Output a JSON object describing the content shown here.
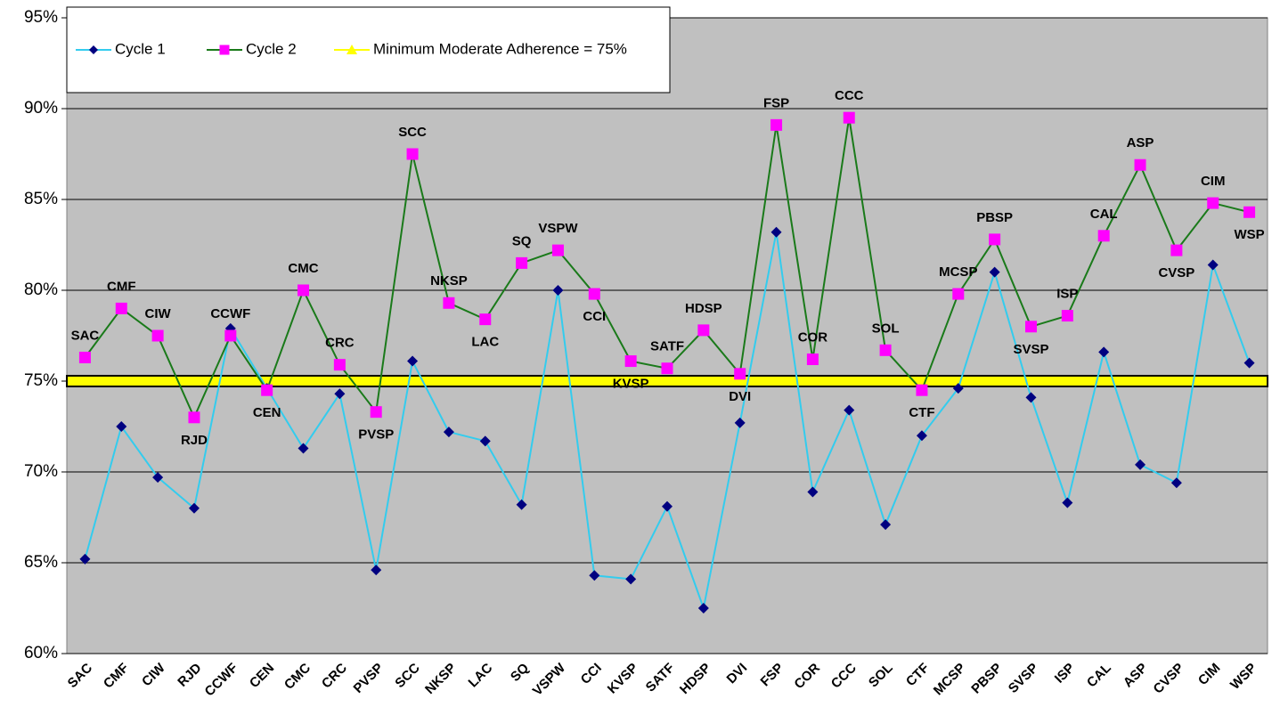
{
  "chart_data": {
    "type": "line",
    "categories": [
      "SAC",
      "CMF",
      "CIW",
      "RJD",
      "CCWF",
      "CEN",
      "CMC",
      "CRC",
      "PVSP",
      "SCC",
      "NKSP",
      "LAC",
      "SQ",
      "VSPW",
      "CCI",
      "KVSP",
      "SATF",
      "HDSP",
      "DVI",
      "FSP",
      "COR",
      "CCC",
      "SOL",
      "CTF",
      "MCSP",
      "PBSP",
      "SVSP",
      "ISP",
      "CAL",
      "ASP",
      "CVSP",
      "CIM",
      "WSP"
    ],
    "series": [
      {
        "name": "Cycle 1",
        "color": "#33ccee",
        "marker_color": "#000080",
        "marker": "diamond",
        "values": [
          65.2,
          72.5,
          69.7,
          68.0,
          77.9,
          74.6,
          71.3,
          74.3,
          64.6,
          76.1,
          72.2,
          71.7,
          68.2,
          80.0,
          64.3,
          64.1,
          68.1,
          62.5,
          72.7,
          83.2,
          68.9,
          73.4,
          67.1,
          72.0,
          74.6,
          81.0,
          74.1,
          68.3,
          76.6,
          70.4,
          69.4,
          81.4,
          76.0
        ]
      },
      {
        "name": "Cycle 2",
        "color": "#1a7a1a",
        "marker_color": "#ff00ff",
        "marker": "square",
        "values": [
          76.3,
          79.0,
          77.5,
          73.0,
          77.5,
          74.5,
          80.0,
          75.9,
          73.3,
          87.5,
          79.3,
          78.4,
          81.5,
          82.2,
          79.8,
          76.1,
          75.7,
          77.8,
          75.4,
          89.1,
          76.2,
          89.5,
          76.7,
          74.5,
          79.8,
          82.8,
          78.0,
          78.6,
          83.0,
          86.9,
          82.2,
          84.8,
          84.3
        ]
      }
    ],
    "reference_line": {
      "name": "Minimum Moderate Adherence = 75%",
      "value": 75,
      "color": "#ffff00"
    },
    "ylim": [
      60,
      95
    ],
    "yticks": [
      {
        "value": 60,
        "label": "60%"
      },
      {
        "value": 65,
        "label": "65%"
      },
      {
        "value": 70,
        "label": "70%"
      },
      {
        "value": 75,
        "label": "75%"
      },
      {
        "value": 80,
        "label": "80%"
      },
      {
        "value": 85,
        "label": "85%"
      },
      {
        "value": 90,
        "label": "90%"
      },
      {
        "value": 95,
        "label": "95%"
      }
    ],
    "grid": true,
    "legend": "top-left",
    "plot_background": "#c0c0c0"
  }
}
